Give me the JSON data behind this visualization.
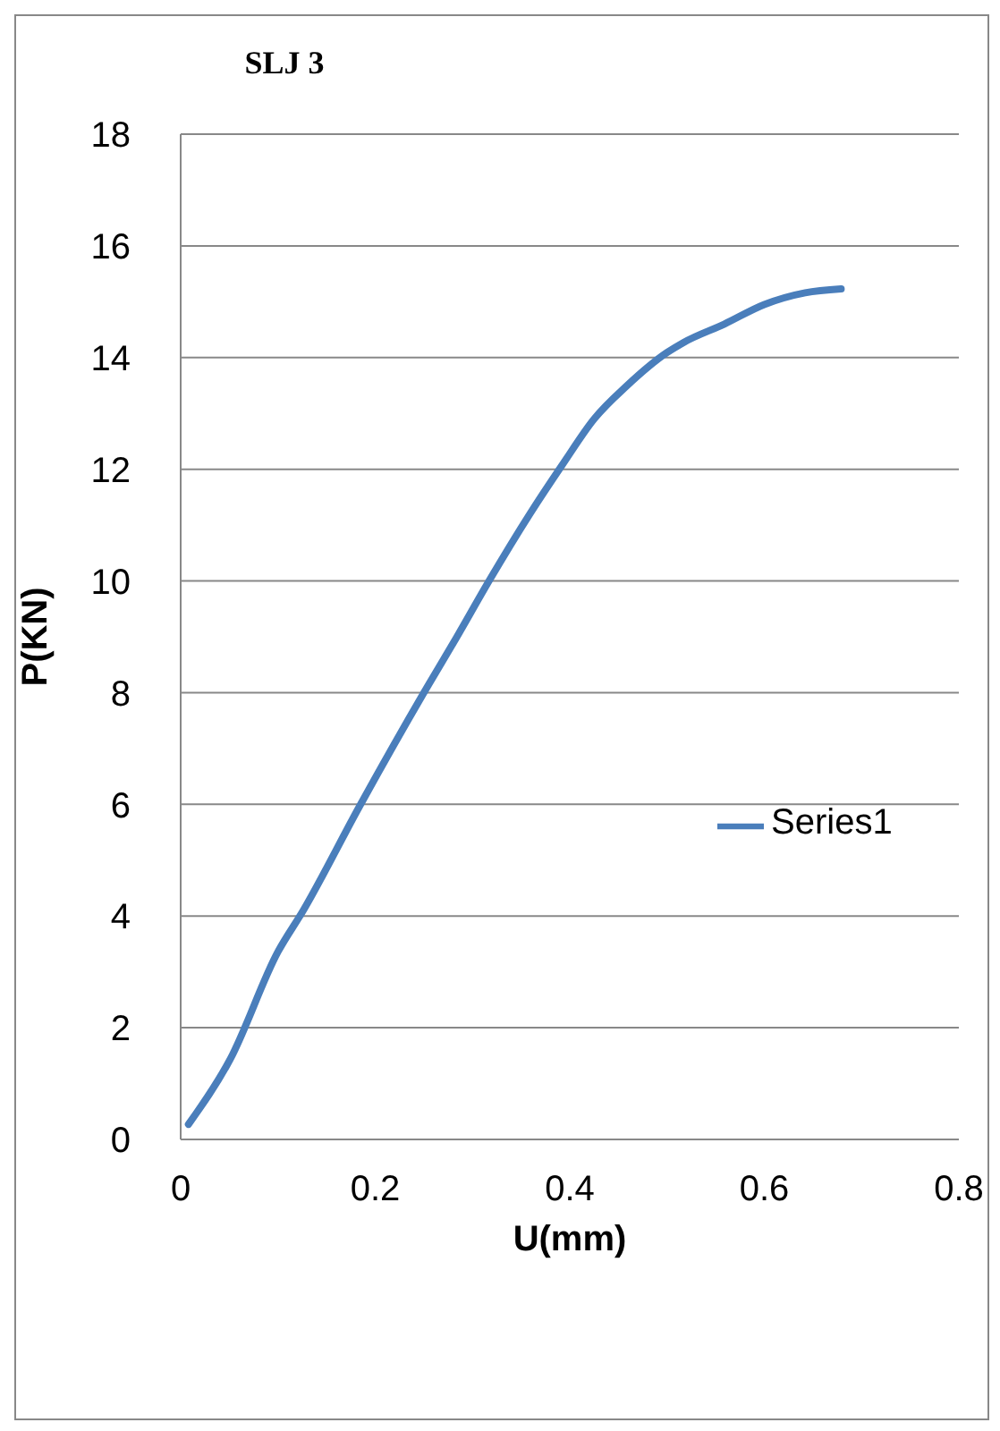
{
  "chart_data": {
    "type": "line",
    "title": "SLJ 3",
    "xlabel": "U(mm)",
    "ylabel": "P(KN)",
    "xlim": [
      0,
      0.8
    ],
    "xticks": [
      0,
      0.2,
      0.4,
      0.6,
      0.8
    ],
    "ylim": [
      0,
      18
    ],
    "yticks": [
      0,
      2,
      4,
      6,
      8,
      10,
      12,
      14,
      16,
      18
    ],
    "grid": "y",
    "legend": "right",
    "marker": "none",
    "line_style": "solid",
    "series": [
      {
        "name": "Series1",
        "color": "#4a7ebb",
        "x": [
          0.008,
          0.051,
          0.1,
          0.126,
          0.184,
          0.25,
          0.284,
          0.317,
          0.359,
          0.392,
          0.425,
          0.459,
          0.5,
          0.517,
          0.559,
          0.6,
          0.642,
          0.679
        ],
        "values": [
          0.27,
          1.44,
          3.36,
          4.1,
          5.97,
          8.0,
          9.0,
          10.0,
          11.2,
          12.07,
          12.9,
          13.5,
          14.09,
          14.27,
          14.6,
          14.95,
          15.16,
          15.23
        ]
      }
    ]
  }
}
